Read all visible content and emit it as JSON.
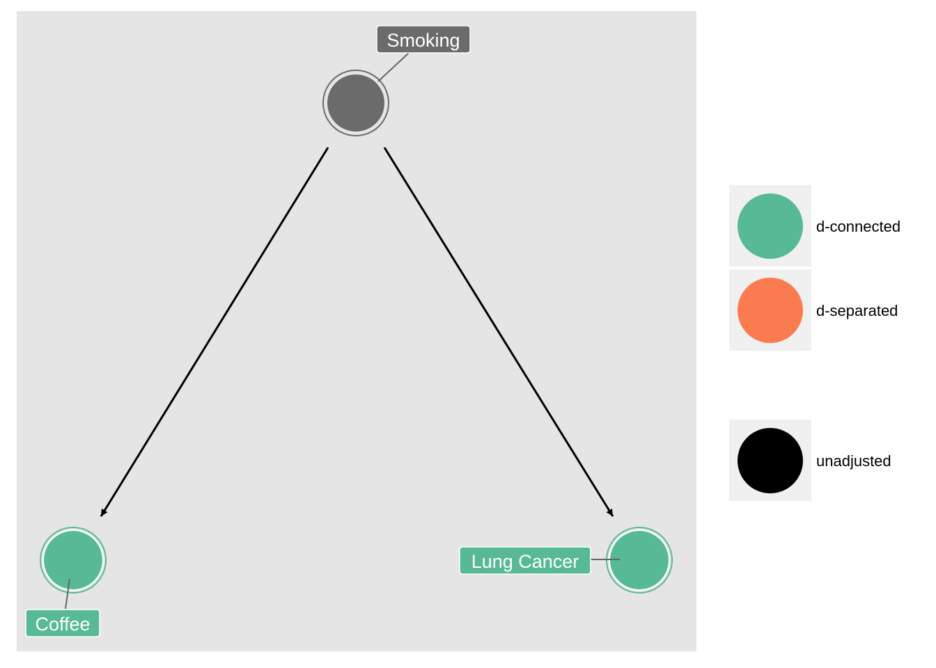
{
  "nodes": [
    {
      "id": "smoking",
      "label": "Smoking",
      "status": "exposure",
      "fill": "#6b6b6b"
    },
    {
      "id": "coffee",
      "label": "Coffee",
      "status": "d-connected",
      "fill": "#57ba94"
    },
    {
      "id": "lung_cancer",
      "label": "Lung Cancer",
      "status": "d-connected",
      "fill": "#57ba94"
    }
  ],
  "edges": [
    {
      "from": "smoking",
      "to": "coffee"
    },
    {
      "from": "smoking",
      "to": "lung_cancer"
    }
  ],
  "legend": {
    "status": [
      {
        "label": "d-connected",
        "color": "#57ba94"
      },
      {
        "label": "d-separated",
        "color": "#fb7b50"
      }
    ],
    "adjusted": [
      {
        "label": "unadjusted",
        "color": "#000000"
      }
    ]
  },
  "colors": {
    "panel_background": "#e5e5e5",
    "legend_key_background": "#f0f0f0",
    "edge": "#000000",
    "label_connector": "#666666"
  }
}
